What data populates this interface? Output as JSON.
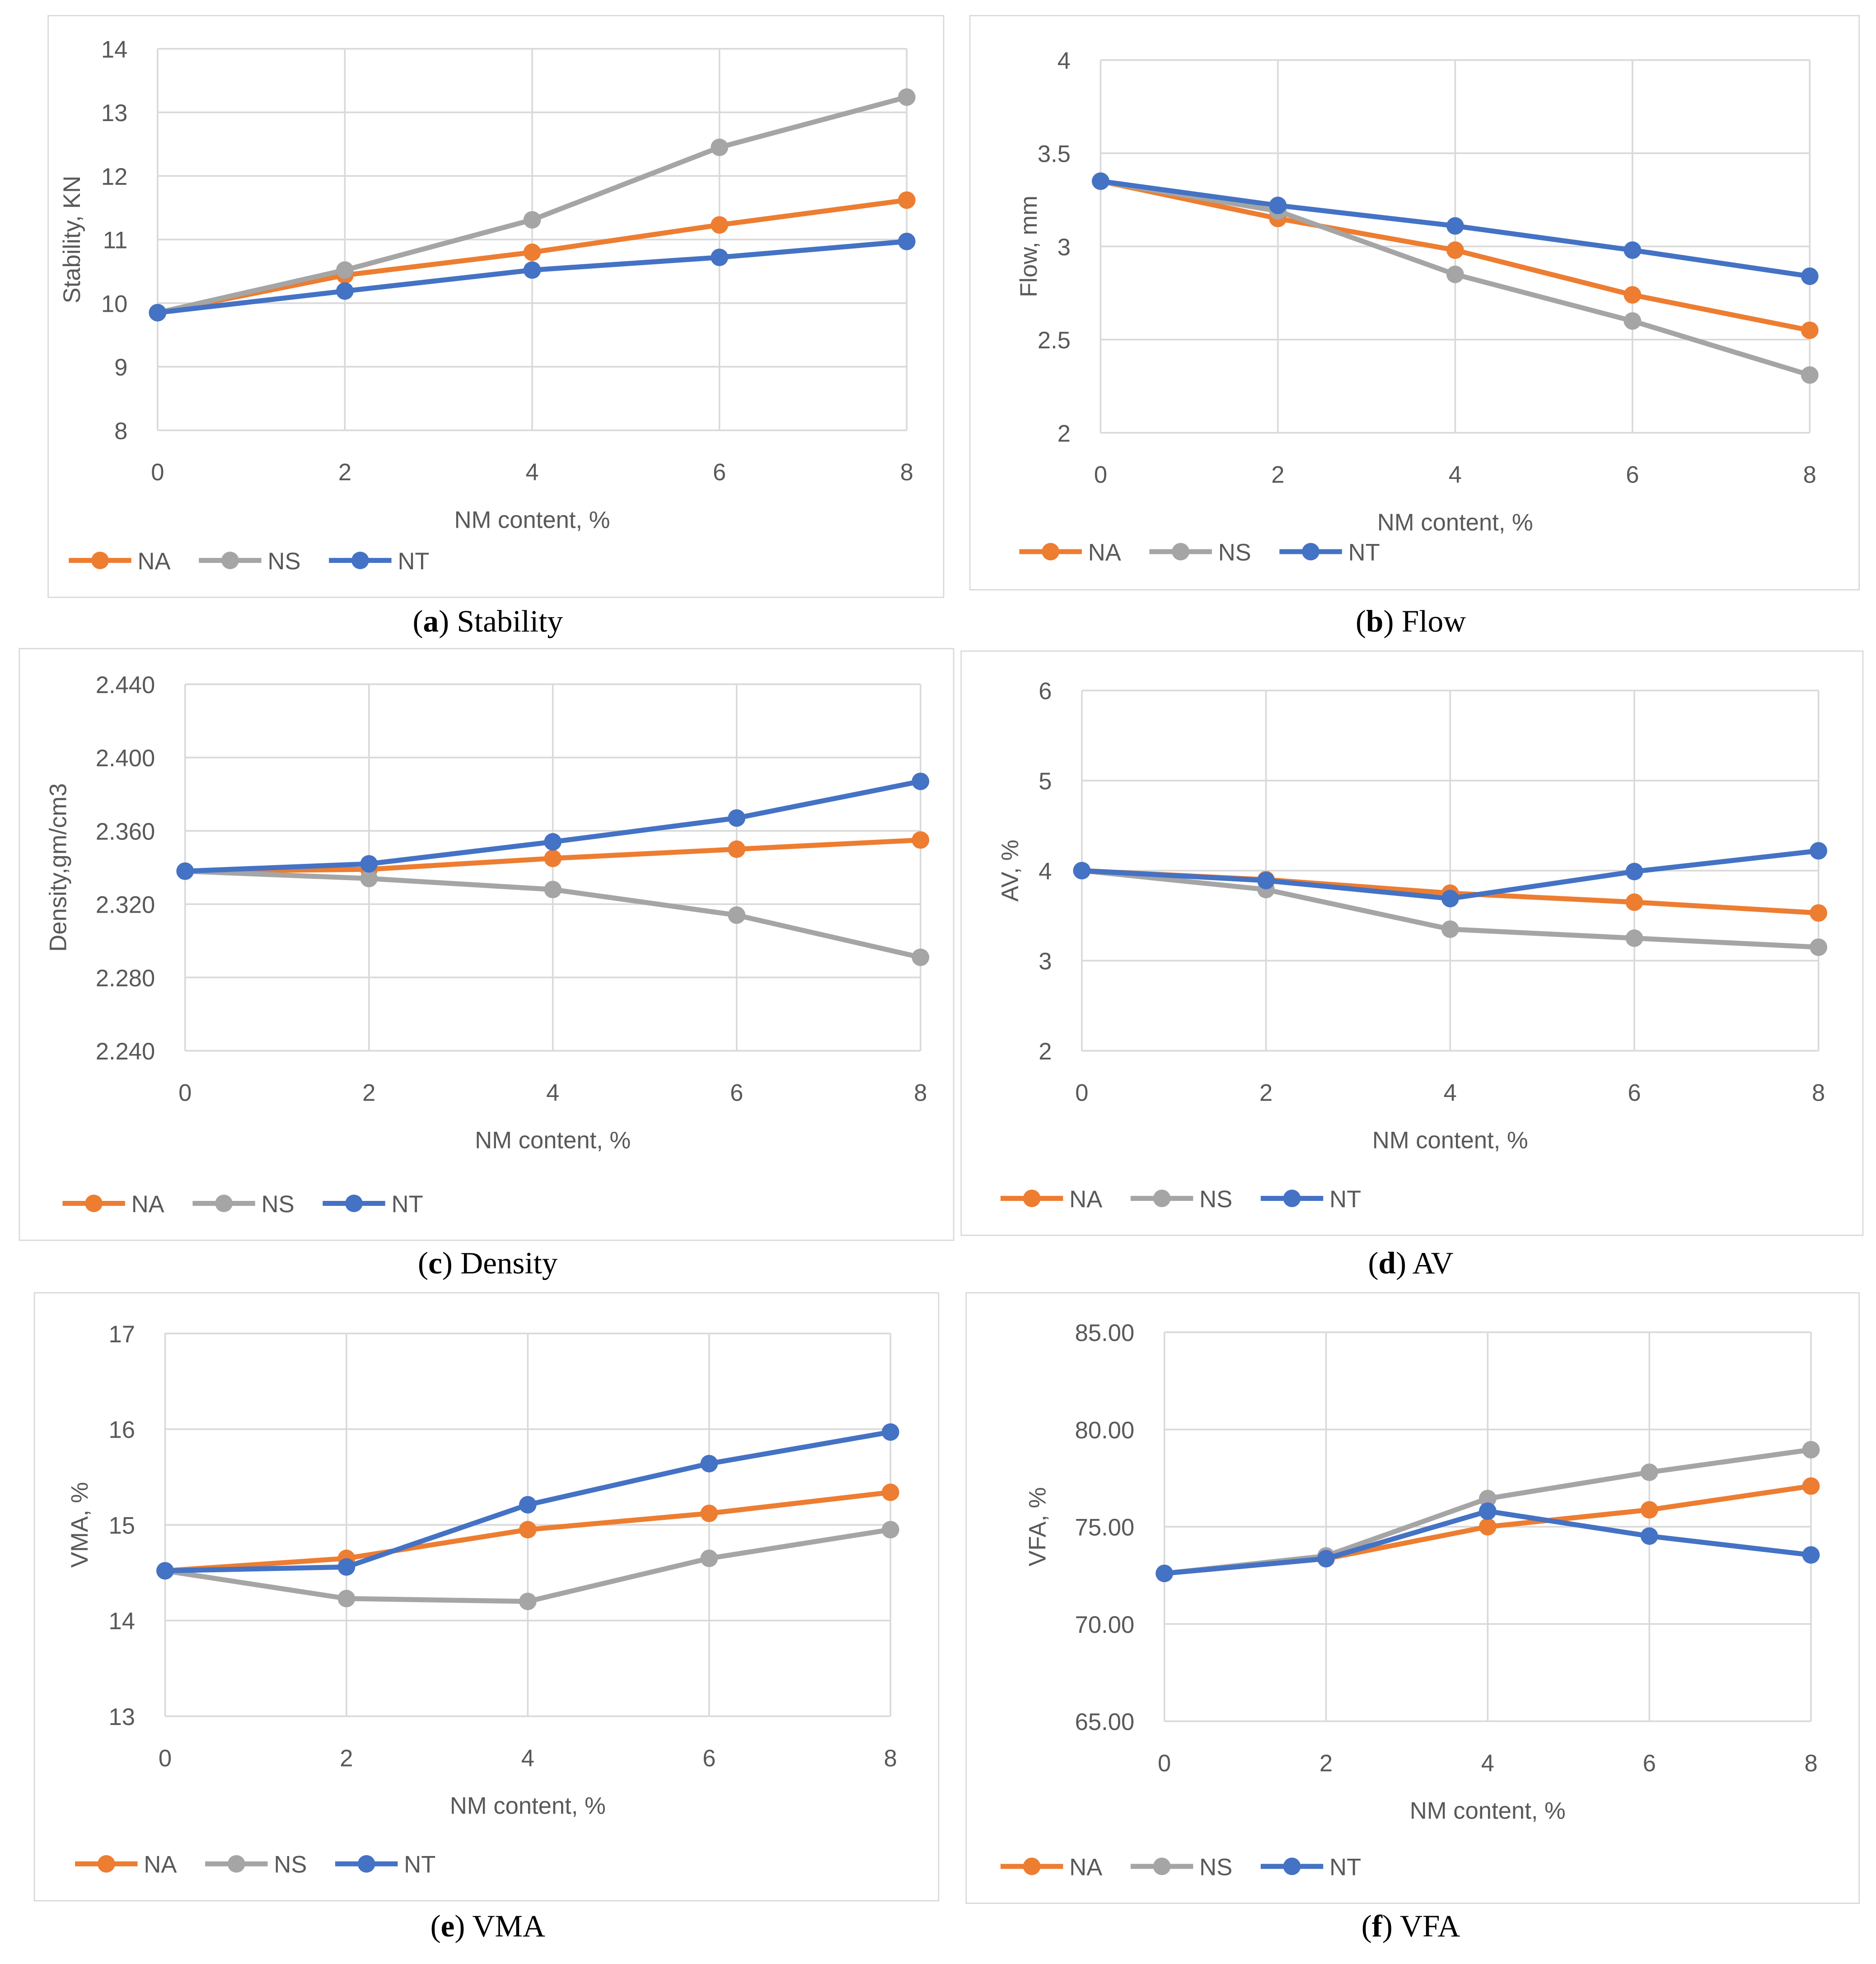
{
  "colors": {
    "NA": "#ED7D31",
    "NS": "#A5A5A5",
    "NT": "#4472C4",
    "grid": "#d9d9d9"
  },
  "chart_data": [
    {
      "type": "line",
      "caption_letter": "a",
      "caption_text": "Stability",
      "xlabel": "NM content, %",
      "ylabel": "Stability, KN",
      "x": [
        0,
        2,
        4,
        6,
        8
      ],
      "xticks": [
        "0",
        "2",
        "4",
        "6",
        "8"
      ],
      "xlim": [
        0,
        8
      ],
      "yticks": [
        "8",
        "9",
        "10",
        "11",
        "12",
        "13",
        "14"
      ],
      "ylim": [
        8,
        14
      ],
      "grid": true,
      "legend": "bottom-left",
      "series": [
        {
          "name": "NA",
          "values": [
            9.85,
            10.44,
            10.8,
            11.23,
            11.62
          ]
        },
        {
          "name": "NS",
          "values": [
            9.85,
            10.52,
            11.31,
            12.45,
            13.24
          ]
        },
        {
          "name": "NT",
          "values": [
            9.85,
            10.19,
            10.52,
            10.72,
            10.97
          ]
        }
      ]
    },
    {
      "type": "line",
      "caption_letter": "b",
      "caption_text": "Flow",
      "xlabel": "NM content, %",
      "ylabel": "Flow, mm",
      "x": [
        0,
        2,
        4,
        6,
        8
      ],
      "xticks": [
        "0",
        "2",
        "4",
        "6",
        "8"
      ],
      "xlim": [
        0,
        8
      ],
      "yticks": [
        "2",
        "2.5",
        "3",
        "3.5",
        "4"
      ],
      "ylim": [
        2,
        4
      ],
      "grid": true,
      "legend": "bottom-left",
      "series": [
        {
          "name": "NA",
          "values": [
            3.35,
            3.15,
            2.98,
            2.74,
            2.55
          ]
        },
        {
          "name": "NS",
          "values": [
            3.35,
            3.19,
            2.85,
            2.6,
            2.31
          ]
        },
        {
          "name": "NT",
          "values": [
            3.35,
            3.22,
            3.11,
            2.98,
            2.84
          ]
        }
      ]
    },
    {
      "type": "line",
      "caption_letter": "c",
      "caption_text": "Density",
      "xlabel": "NM content, %",
      "ylabel": "Density,gm/cm3",
      "x": [
        0,
        2,
        4,
        6,
        8
      ],
      "xticks": [
        "0",
        "2",
        "4",
        "6",
        "8"
      ],
      "xlim": [
        0,
        8
      ],
      "yticks": [
        "2.240",
        "2.280",
        "2.320",
        "2.360",
        "2.400",
        "2.440"
      ],
      "ylim": [
        2.24,
        2.44
      ],
      "grid": true,
      "legend": "bottom-left",
      "series": [
        {
          "name": "NA",
          "values": [
            2.338,
            2.339,
            2.345,
            2.35,
            2.355
          ]
        },
        {
          "name": "NS",
          "values": [
            2.338,
            2.334,
            2.328,
            2.314,
            2.291
          ]
        },
        {
          "name": "NT",
          "values": [
            2.338,
            2.342,
            2.354,
            2.367,
            2.387
          ]
        }
      ]
    },
    {
      "type": "line",
      "caption_letter": "d",
      "caption_text": "AV",
      "xlabel": "NM content, %",
      "ylabel": "AV, %",
      "x": [
        0,
        2,
        4,
        6,
        8
      ],
      "xticks": [
        "0",
        "2",
        "4",
        "6",
        "8"
      ],
      "xlim": [
        0,
        8
      ],
      "yticks": [
        "2",
        "3",
        "4",
        "5",
        "6"
      ],
      "ylim": [
        2,
        6
      ],
      "grid": true,
      "legend": "bottom-left",
      "series": [
        {
          "name": "NA",
          "values": [
            4.0,
            3.9,
            3.75,
            3.65,
            3.53
          ]
        },
        {
          "name": "NS",
          "values": [
            4.0,
            3.79,
            3.35,
            3.25,
            3.15
          ]
        },
        {
          "name": "NT",
          "values": [
            4.0,
            3.89,
            3.69,
            3.99,
            4.22
          ]
        }
      ]
    },
    {
      "type": "line",
      "caption_letter": "e",
      "caption_text": "VMA",
      "xlabel": "NM content, %",
      "ylabel": "VMA, %",
      "x": [
        0,
        2,
        4,
        6,
        8
      ],
      "xticks": [
        "0",
        "2",
        "4",
        "6",
        "8"
      ],
      "xlim": [
        0,
        8
      ],
      "yticks": [
        "13",
        "14",
        "15",
        "16",
        "17"
      ],
      "ylim": [
        13,
        17
      ],
      "grid": true,
      "legend": "bottom-left",
      "series": [
        {
          "name": "NA",
          "values": [
            14.52,
            14.65,
            14.95,
            15.12,
            15.34
          ]
        },
        {
          "name": "NS",
          "values": [
            14.52,
            14.23,
            14.2,
            14.65,
            14.95
          ]
        },
        {
          "name": "NT",
          "values": [
            14.52,
            14.56,
            15.21,
            15.64,
            15.97
          ]
        }
      ]
    },
    {
      "type": "line",
      "caption_letter": "f",
      "caption_text": "VFA",
      "xlabel": "NM content, %",
      "ylabel": "VFA, %",
      "x": [
        0,
        2,
        4,
        6,
        8
      ],
      "xticks": [
        "0",
        "2",
        "4",
        "6",
        "8"
      ],
      "xlim": [
        0,
        8
      ],
      "yticks": [
        "65.00",
        "70.00",
        "75.00",
        "80.00",
        "85.00"
      ],
      "ylim": [
        65,
        85
      ],
      "grid": true,
      "legend": "bottom-left",
      "series": [
        {
          "name": "NA",
          "values": [
            72.6,
            73.36,
            75.0,
            75.87,
            77.09
          ]
        },
        {
          "name": "NS",
          "values": [
            72.6,
            73.5,
            76.45,
            77.8,
            78.96
          ]
        },
        {
          "name": "NT",
          "values": [
            72.6,
            73.36,
            75.8,
            74.52,
            73.55
          ]
        }
      ]
    }
  ]
}
